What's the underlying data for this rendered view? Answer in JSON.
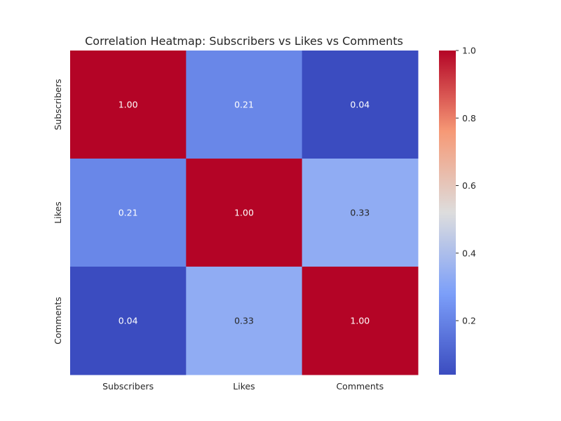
{
  "chart_data": {
    "type": "heatmap",
    "title": "Correlation Heatmap: Subscribers vs Likes vs Comments",
    "x_categories": [
      "Subscribers",
      "Likes",
      "Comments"
    ],
    "y_categories": [
      "Subscribers",
      "Likes",
      "Comments"
    ],
    "values": [
      [
        1.0,
        0.21,
        0.04
      ],
      [
        0.21,
        1.0,
        0.33
      ],
      [
        0.04,
        0.33,
        1.0
      ]
    ],
    "cell_labels": [
      [
        "1.00",
        "0.21",
        "0.04"
      ],
      [
        "0.21",
        "1.00",
        "0.33"
      ],
      [
        "0.04",
        "0.33",
        "1.00"
      ]
    ],
    "colormap": "coolwarm",
    "colorbar": {
      "range": [
        0.04,
        1.0
      ],
      "ticks": [
        0.2,
        0.4,
        0.6,
        0.8,
        1.0
      ],
      "tick_labels": [
        "0.2",
        "0.4",
        "0.6",
        "0.8",
        "1.0"
      ]
    },
    "grid": false,
    "legend": "colorbar-right"
  }
}
